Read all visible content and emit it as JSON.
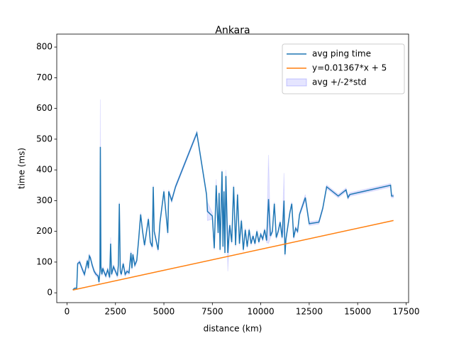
{
  "chart_data": {
    "type": "line",
    "title": "Ankara",
    "xlabel": "distance (km)",
    "ylabel": "time (ms)",
    "xlim": [
      -530,
      17630
    ],
    "ylim": [
      -32,
      842
    ],
    "xticks": [
      0,
      2500,
      5000,
      7500,
      10000,
      12500,
      15000,
      17500
    ],
    "yticks": [
      0,
      100,
      200,
      300,
      400,
      500,
      600,
      700,
      800
    ],
    "legend": "upper right",
    "series": [
      {
        "name": "avg ping time",
        "color": "#1f77b4",
        "x": [
          300,
          400,
          500,
          550,
          650,
          800,
          900,
          1000,
          1050,
          1100,
          1150,
          1200,
          1300,
          1400,
          1500,
          1600,
          1650,
          1700,
          1720,
          1750,
          1800,
          1850,
          1900,
          2000,
          2100,
          2200,
          2250,
          2300,
          2400,
          2500,
          2600,
          2650,
          2700,
          2750,
          2800,
          2900,
          3000,
          3100,
          3200,
          3300,
          3350,
          3400,
          3500,
          3600,
          3700,
          3800,
          3900,
          4000,
          4200,
          4300,
          4400,
          4450,
          4500,
          4600,
          4700,
          4800,
          5000,
          5200,
          5250,
          5400,
          5600,
          6700,
          7200,
          7250,
          7500,
          7600,
          7700,
          7800,
          7850,
          7900,
          8000,
          8050,
          8100,
          8150,
          8200,
          8300,
          8400,
          8500,
          8600,
          8700,
          8800,
          8900,
          9000,
          9100,
          9200,
          9300,
          9400,
          9500,
          9600,
          9700,
          9800,
          9900,
          10000,
          10100,
          10200,
          10300,
          10400,
          10500,
          10600,
          10700,
          10800,
          10900,
          11000,
          11100,
          11200,
          11250,
          11300,
          11500,
          11600,
          11700,
          11800,
          11900,
          12000,
          12300,
          12500,
          13000,
          13200,
          13400,
          14000,
          14400,
          14500,
          14600,
          16700,
          16750,
          16850
        ],
        "values": [
          10,
          15,
          15,
          95,
          100,
          75,
          60,
          90,
          105,
          80,
          120,
          115,
          90,
          70,
          60,
          55,
          35,
          70,
          475,
          85,
          60,
          80,
          70,
          55,
          75,
          50,
          160,
          60,
          85,
          70,
          55,
          90,
          290,
          70,
          60,
          95,
          60,
          70,
          65,
          130,
          80,
          125,
          90,
          105,
          175,
          255,
          200,
          155,
          240,
          165,
          150,
          345,
          200,
          170,
          140,
          230,
          330,
          195,
          330,
          300,
          345,
          520,
          320,
          265,
          250,
          145,
          350,
          195,
          325,
          140,
          395,
          150,
          330,
          130,
          380,
          130,
          220,
          165,
          345,
          155,
          320,
          160,
          235,
          140,
          205,
          150,
          205,
          160,
          185,
          160,
          200,
          165,
          190,
          175,
          205,
          170,
          305,
          185,
          200,
          290,
          180,
          200,
          230,
          180,
          300,
          125,
          175,
          260,
          290,
          180,
          210,
          200,
          255,
          310,
          225,
          230,
          275,
          345,
          315,
          335,
          310,
          320,
          350,
          315,
          315
        ]
      },
      {
        "name": "y=0.01367*x + 5",
        "color": "#ff7f0e",
        "x": [
          300,
          16850
        ],
        "values": [
          9.1,
          235.3
        ]
      }
    ],
    "band": {
      "name": "avg +/-2*std",
      "color": "#0000ff",
      "std": [
        0,
        0,
        0,
        2,
        3,
        3,
        3,
        3,
        3,
        3,
        3,
        3,
        3,
        3,
        3,
        3,
        3,
        3,
        77,
        5,
        3,
        3,
        3,
        3,
        3,
        3,
        10,
        3,
        3,
        3,
        3,
        3,
        3,
        3,
        3,
        3,
        3,
        3,
        3,
        3,
        3,
        3,
        3,
        3,
        3,
        3,
        3,
        3,
        3,
        3,
        3,
        3,
        3,
        3,
        3,
        3,
        3,
        3,
        3,
        3,
        3,
        3,
        3,
        15,
        5,
        3,
        10,
        3,
        3,
        3,
        3,
        3,
        3,
        3,
        10,
        30,
        3,
        3,
        3,
        3,
        3,
        3,
        3,
        3,
        3,
        3,
        3,
        3,
        3,
        3,
        3,
        3,
        3,
        3,
        3,
        3,
        72,
        3,
        3,
        3,
        3,
        3,
        3,
        3,
        45,
        3,
        3,
        3,
        3,
        3,
        3,
        3,
        3,
        5,
        3,
        3,
        3,
        3,
        3,
        3,
        3,
        3,
        3,
        3,
        3
      ]
    }
  }
}
